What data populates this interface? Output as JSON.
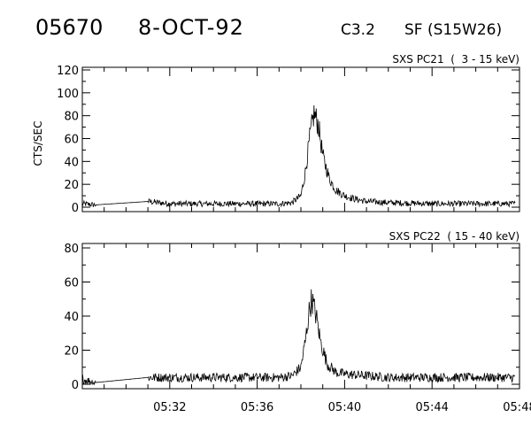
{
  "header": {
    "event_id": "05670",
    "date": "8-OCT-92",
    "goes_class": "C3.2",
    "location": "SF (S15W26)"
  },
  "chart_data": [
    {
      "type": "line",
      "title": "SXS PC21  (  3 - 15 keV)",
      "ylabel": "CTS/SEC",
      "xlabel": "",
      "xlim": [
        "05:28",
        "05:48"
      ],
      "ylim": [
        0,
        120
      ],
      "y_ticks": [
        0,
        20,
        40,
        60,
        80,
        100,
        120
      ],
      "x_ticks": [
        "05:32",
        "05:36",
        "05:40",
        "05:44",
        "05:48"
      ],
      "grid": false,
      "series": [
        {
          "points": [
            [
              "05:28.0",
              3
            ],
            [
              "05:28.6",
              2
            ],
            [
              "05:31.0",
              5
            ],
            [
              "05:32.0",
              3
            ],
            [
              "05:34.0",
              3
            ],
            [
              "05:35.0",
              3
            ],
            [
              "05:36.0",
              3
            ],
            [
              "05:37.0",
              3
            ],
            [
              "05:37.6",
              4
            ],
            [
              "05:38.0",
              10
            ],
            [
              "05:38.2",
              30
            ],
            [
              "05:38.4",
              60
            ],
            [
              "05:38.6",
              82
            ],
            [
              "05:38.8",
              72
            ],
            [
              "05:39.0",
              45
            ],
            [
              "05:39.3",
              25
            ],
            [
              "05:39.6",
              15
            ],
            [
              "05:40.0",
              10
            ],
            [
              "05:40.5",
              7
            ],
            [
              "05:41.0",
              5
            ],
            [
              "05:42.0",
              4
            ],
            [
              "05:44.0",
              3
            ],
            [
              "05:46.0",
              3
            ],
            [
              "05:47.8",
              3
            ]
          ]
        }
      ]
    },
    {
      "type": "line",
      "title": "SXS PC22  ( 15 - 40 keV)",
      "ylabel": "",
      "xlabel": "",
      "xlim": [
        "05:28",
        "05:48"
      ],
      "ylim": [
        0,
        80
      ],
      "y_ticks": [
        0,
        20,
        40,
        60,
        80
      ],
      "x_ticks": [
        "05:32",
        "05:36",
        "05:40",
        "05:44",
        "05:48"
      ],
      "grid": false,
      "series": [
        {
          "points": [
            [
              "05:28.0",
              3
            ],
            [
              "05:28.6",
              1
            ],
            [
              "05:31.0",
              4
            ],
            [
              "05:32.0",
              4
            ],
            [
              "05:34.0",
              4
            ],
            [
              "05:35.0",
              4
            ],
            [
              "05:36.0",
              4
            ],
            [
              "05:37.0",
              4
            ],
            [
              "05:37.6",
              5
            ],
            [
              "05:38.0",
              10
            ],
            [
              "05:38.2",
              25
            ],
            [
              "05:38.4",
              45
            ],
            [
              "05:38.5",
              50
            ],
            [
              "05:38.7",
              40
            ],
            [
              "05:38.9",
              25
            ],
            [
              "05:39.2",
              12
            ],
            [
              "05:39.6",
              7
            ],
            [
              "05:40.0",
              6
            ],
            [
              "05:41.0",
              5
            ],
            [
              "05:42.0",
              4
            ],
            [
              "05:44.0",
              4
            ],
            [
              "05:46.0",
              4
            ],
            [
              "05:47.8",
              4
            ]
          ]
        }
      ]
    }
  ]
}
